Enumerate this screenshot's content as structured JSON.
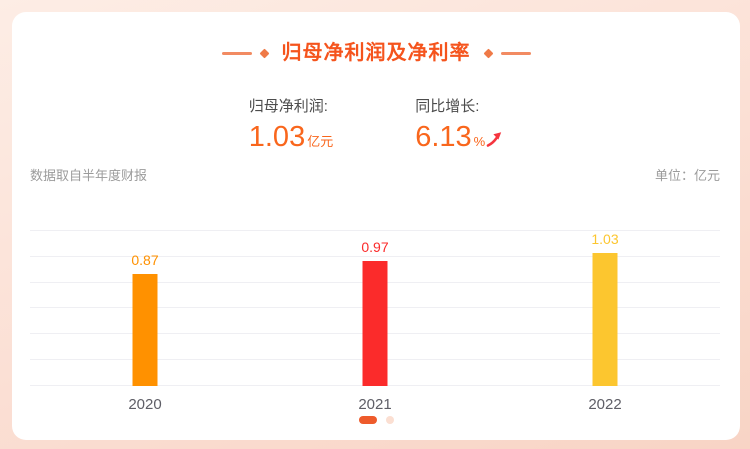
{
  "header": {
    "title": "归母净利润及净利率"
  },
  "stats": [
    {
      "label": "归母净利润:",
      "value": "1.03",
      "suffix": "亿元"
    },
    {
      "label": "同比增长:",
      "value": "6.13",
      "suffix": "%",
      "trend": "up"
    }
  ],
  "meta": {
    "source_note": "数据取自半年度财报",
    "unit_label": "单位：亿元"
  },
  "chart_data": {
    "type": "bar",
    "title": "归母净利润及净利率",
    "categories": [
      "2020",
      "2021",
      "2022"
    ],
    "values": [
      0.87,
      0.97,
      1.03
    ],
    "value_labels": [
      "0.87",
      "0.97",
      "1.03"
    ],
    "bar_colors": [
      "#FF9100",
      "#FB2B2B",
      "#FCC62F"
    ],
    "xlabel": "",
    "ylabel": "亿元",
    "ylim": [
      0,
      1.4
    ],
    "grid_values": [
      0,
      0.2,
      0.4,
      0.6,
      0.8,
      1.0,
      1.2
    ],
    "grid": true,
    "legend": false
  },
  "pagination": {
    "total": 2,
    "active_index": 0
  },
  "colors": {
    "accent": "#F5541D",
    "value_orange": "#F9661C",
    "arrow_red": "#F5353F",
    "active_dot": "#EE5B2B",
    "inactive_dot": "#FBDFD2",
    "gridline": "#EFEFF3"
  }
}
